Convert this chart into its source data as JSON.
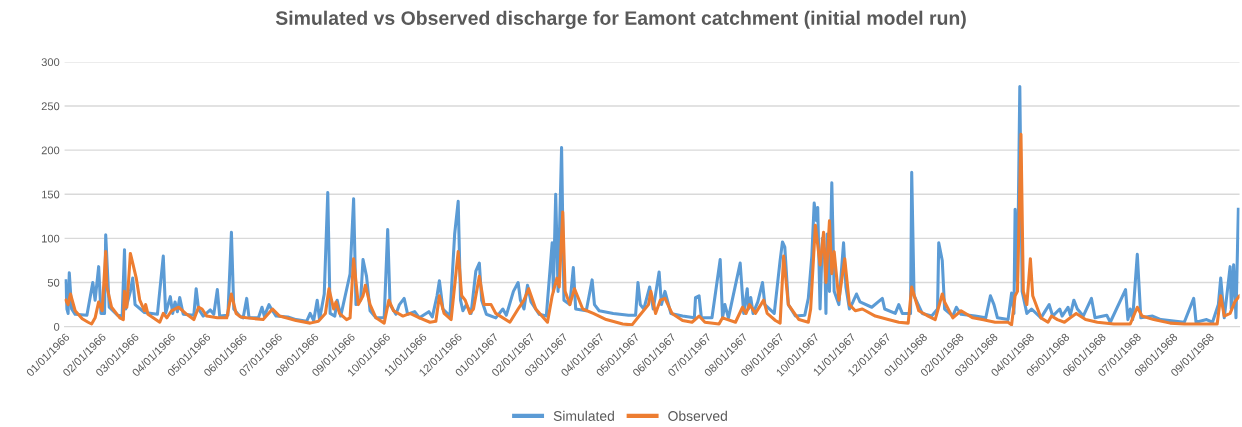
{
  "chart_data": {
    "type": "line",
    "title": "Simulated vs Observed discharge for Eamont catchment (initial model run)",
    "xlim": [
      "1966-01-01",
      "1968-09-27"
    ],
    "ylim": [
      0,
      300
    ],
    "yticks": [
      0,
      50,
      100,
      150,
      200,
      250,
      300
    ],
    "xticks": [
      {
        "value": "1966-01-01",
        "label": "01/01/1966"
      },
      {
        "value": "1966-02-01",
        "label": "02/01/1966"
      },
      {
        "value": "1966-03-01",
        "label": "03/01/1966"
      },
      {
        "value": "1966-04-01",
        "label": "04/01/1966"
      },
      {
        "value": "1966-05-01",
        "label": "05/01/1966"
      },
      {
        "value": "1966-06-01",
        "label": "06/01/1966"
      },
      {
        "value": "1966-07-01",
        "label": "07/01/1966"
      },
      {
        "value": "1966-08-01",
        "label": "08/01/1966"
      },
      {
        "value": "1966-09-01",
        "label": "09/01/1966"
      },
      {
        "value": "1966-10-01",
        "label": "10/01/1966"
      },
      {
        "value": "1966-11-01",
        "label": "11/01/1966"
      },
      {
        "value": "1966-12-01",
        "label": "12/01/1966"
      },
      {
        "value": "1967-01-01",
        "label": "01/01/1967"
      },
      {
        "value": "1967-02-01",
        "label": "02/01/1967"
      },
      {
        "value": "1967-03-01",
        "label": "03/01/1967"
      },
      {
        "value": "1967-04-01",
        "label": "04/01/1967"
      },
      {
        "value": "1967-05-01",
        "label": "05/01/1967"
      },
      {
        "value": "1967-06-01",
        "label": "06/01/1967"
      },
      {
        "value": "1967-07-01",
        "label": "07/01/1967"
      },
      {
        "value": "1967-08-01",
        "label": "08/01/1967"
      },
      {
        "value": "1967-09-01",
        "label": "09/01/1967"
      },
      {
        "value": "1967-10-01",
        "label": "10/01/1967"
      },
      {
        "value": "1967-11-01",
        "label": "11/01/1967"
      },
      {
        "value": "1967-12-01",
        "label": "12/01/1967"
      },
      {
        "value": "1968-01-01",
        "label": "01/01/1968"
      },
      {
        "value": "1968-02-01",
        "label": "02/01/1968"
      },
      {
        "value": "1968-03-01",
        "label": "03/01/1968"
      },
      {
        "value": "1968-04-01",
        "label": "04/01/1968"
      },
      {
        "value": "1968-05-01",
        "label": "05/01/1968"
      },
      {
        "value": "1968-06-01",
        "label": "06/01/1968"
      },
      {
        "value": "1968-07-01",
        "label": "07/01/1968"
      },
      {
        "value": "1968-08-01",
        "label": "08/01/1968"
      },
      {
        "value": "1968-09-01",
        "label": "09/01/1968"
      }
    ],
    "grid": "y",
    "legend": "bottom",
    "marker": "none",
    "line_style": "solid",
    "series": [
      {
        "name": "Simulated",
        "color": "#5b9bd5",
        "x": [
          "1966-01-02",
          "1966-01-03",
          "1966-01-04",
          "1966-01-05",
          "1966-01-07",
          "1966-01-10",
          "1966-01-20",
          "1966-01-25",
          "1966-01-27",
          "1966-01-30",
          "1966-02-01",
          "1966-02-04",
          "1966-02-05",
          "1966-02-08",
          "1966-02-15",
          "1966-02-19",
          "1966-02-21",
          "1966-02-22",
          "1966-02-26",
          "1966-02-28",
          "1966-03-02",
          "1966-03-10",
          "1966-03-21",
          "1966-03-26",
          "1966-03-28",
          "1966-04-01",
          "1966-04-03",
          "1966-04-05",
          "1966-04-07",
          "1966-04-09",
          "1966-04-12",
          "1966-04-21",
          "1966-04-23",
          "1966-04-25",
          "1966-04-29",
          "1966-05-05",
          "1966-05-08",
          "1966-05-11",
          "1966-05-13",
          "1966-05-20",
          "1966-05-23",
          "1966-05-25",
          "1966-05-30",
          "1966-06-02",
          "1966-06-05",
          "1966-06-07",
          "1966-06-15",
          "1966-06-18",
          "1966-06-20",
          "1966-06-24",
          "1966-06-26",
          "1966-06-30",
          "1966-07-10",
          "1966-07-17",
          "1966-07-26",
          "1966-07-29",
          "1966-08-01",
          "1966-08-04",
          "1966-08-06",
          "1966-08-10",
          "1966-08-13",
          "1966-08-15",
          "1966-08-19",
          "1966-08-21",
          "1966-08-24",
          "1966-09-01",
          "1966-09-04",
          "1966-09-06",
          "1966-09-10",
          "1966-09-12",
          "1966-09-15",
          "1966-09-18",
          "1966-09-23",
          "1966-09-30",
          "1966-10-03",
          "1966-10-05",
          "1966-10-10",
          "1966-10-13",
          "1966-10-17",
          "1966-10-20",
          "1966-10-26",
          "1966-10-30",
          "1966-11-07",
          "1966-11-10",
          "1966-11-14",
          "1966-11-16",
          "1966-11-19",
          "1966-11-25",
          "1966-11-29",
          "1966-12-02",
          "1966-12-04",
          "1966-12-06",
          "1966-12-09",
          "1966-12-13",
          "1966-12-17",
          "1966-12-20",
          "1966-12-22",
          "1966-12-26",
          "1967-01-03",
          "1967-01-09",
          "1967-01-12",
          "1967-01-18",
          "1967-01-22",
          "1967-01-24",
          "1967-01-27",
          "1967-01-30",
          "1967-02-02",
          "1967-02-09",
          "1967-02-15",
          "1967-02-20",
          "1967-02-21",
          "1967-02-23",
          "1967-02-25",
          "1967-02-28",
          "1967-03-02",
          "1967-03-07",
          "1967-03-10",
          "1967-03-12",
          "1967-03-21",
          "1967-03-26",
          "1967-03-28",
          "1967-04-01",
          "1967-04-13",
          "1967-04-26",
          "1967-05-02",
          "1967-05-04",
          "1967-05-06",
          "1967-05-09",
          "1967-05-14",
          "1967-05-17",
          "1967-05-22",
          "1967-05-24",
          "1967-05-27",
          "1967-06-01",
          "1967-06-11",
          "1967-06-21",
          "1967-06-22",
          "1967-06-25",
          "1967-06-27",
          "1967-07-06",
          "1967-07-13",
          "1967-07-15",
          "1967-07-17",
          "1967-07-20",
          "1967-07-30",
          "1967-08-02",
          "1967-08-05",
          "1967-08-06",
          "1967-08-08",
          "1967-08-10",
          "1967-08-14",
          "1967-08-18",
          "1967-08-20",
          "1967-08-28",
          "1967-09-02",
          "1967-09-04",
          "1967-09-06",
          "1967-09-09",
          "1967-09-15",
          "1967-09-23",
          "1967-09-26",
          "1967-09-29",
          "1967-10-01",
          "1967-10-03",
          "1967-10-04",
          "1967-10-06",
          "1967-10-08",
          "1967-10-10",
          "1967-10-11",
          "1967-10-12",
          "1967-10-14",
          "1967-10-16",
          "1967-10-18",
          "1967-10-22",
          "1967-10-26",
          "1967-10-28",
          "1967-10-31",
          "1967-11-03",
          "1967-11-06",
          "1967-11-09",
          "1967-11-19",
          "1967-11-28",
          "1967-11-30",
          "1967-12-09",
          "1967-12-12",
          "1967-12-15",
          "1967-12-22",
          "1967-12-23",
          "1967-12-25",
          "1968-01-01",
          "1968-01-09",
          "1968-01-14",
          "1968-01-15",
          "1968-01-18",
          "1968-01-20",
          "1968-01-27",
          "1968-01-30",
          "1968-02-03",
          "1968-02-15",
          "1968-02-24",
          "1968-02-28",
          "1968-03-02",
          "1968-03-05",
          "1968-03-14",
          "1968-03-17",
          "1968-03-19",
          "1968-03-20",
          "1968-03-22",
          "1968-03-24",
          "1968-03-26",
          "1968-03-30",
          "1968-04-03",
          "1968-04-11",
          "1968-04-18",
          "1968-04-21",
          "1968-04-27",
          "1968-04-29",
          "1968-05-04",
          "1968-05-06",
          "1968-05-09",
          "1968-05-12",
          "1968-05-17",
          "1968-05-24",
          "1968-05-27",
          "1968-06-06",
          "1968-06-09",
          "1968-06-22",
          "1968-06-24",
          "1968-06-26",
          "1968-06-28",
          "1968-07-02",
          "1968-07-05",
          "1968-07-15",
          "1968-07-22",
          "1968-08-11",
          "1968-08-19",
          "1968-08-21",
          "1968-08-30",
          "1968-09-04",
          "1968-09-09",
          "1968-09-11",
          "1968-09-14",
          "1968-09-19",
          "1968-09-20",
          "1968-09-22",
          "1968-09-24",
          "1968-09-26"
        ],
        "values": [
          52,
          20,
          15,
          61,
          20,
          14,
          13,
          50,
          30,
          68,
          15,
          15,
          104,
          22,
          13,
          12,
          87,
          20,
          40,
          55,
          25,
          16,
          14,
          80,
          15,
          34,
          15,
          28,
          17,
          33,
          14,
          13,
          43,
          20,
          12,
          19,
          14,
          42,
          12,
          13,
          107,
          20,
          12,
          10,
          32,
          10,
          10,
          22,
          12,
          25,
          20,
          12,
          11,
          8,
          6,
          15,
          7,
          30,
          8,
          37,
          152,
          15,
          12,
          30,
          12,
          60,
          145,
          25,
          30,
          76,
          57,
          18,
          10,
          10,
          110,
          25,
          14,
          25,
          32,
          14,
          17,
          10,
          17,
          11,
          35,
          52,
          20,
          12,
          105,
          142,
          30,
          18,
          25,
          15,
          63,
          72,
          30,
          14,
          10,
          20,
          13,
          40,
          50,
          30,
          20,
          47,
          28,
          14,
          12,
          95,
          40,
          150,
          40,
          203,
          30,
          25,
          67,
          20,
          18,
          53,
          25,
          18,
          15,
          13,
          13,
          50,
          25,
          20,
          45,
          20,
          62,
          25,
          40,
          15,
          12,
          10,
          33,
          35,
          10,
          10,
          76,
          10,
          25,
          10,
          72,
          15,
          43,
          20,
          33,
          15,
          28,
          50,
          25,
          15,
          75,
          96,
          90,
          25,
          12,
          13,
          32,
          80,
          140,
          120,
          135,
          20,
          100,
          80,
          15,
          105,
          40,
          163,
          40,
          25,
          95,
          45,
          20,
          28,
          37,
          28,
          22,
          32,
          20,
          15,
          25,
          15,
          15,
          175,
          35,
          15,
          12,
          20,
          95,
          75,
          20,
          12,
          22,
          14,
          12,
          10,
          35,
          25,
          10,
          8,
          38,
          15,
          133,
          50,
          272,
          40,
          15,
          20,
          10,
          25,
          12,
          20,
          12,
          22,
          13,
          30,
          20,
          12,
          32,
          10,
          13,
          5,
          42,
          8,
          20,
          8,
          82,
          10,
          12,
          8,
          5,
          32,
          5,
          8,
          5,
          25,
          55,
          10,
          68,
          20,
          70,
          10,
          133
        ]
      },
      {
        "name": "Observed",
        "color": "#ed7d31",
        "x": [
          "1966-01-02",
          "1966-01-04",
          "1966-01-06",
          "1966-01-10",
          "1966-01-16",
          "1966-01-21",
          "1966-01-24",
          "1966-01-27",
          "1966-01-30",
          "1966-02-02",
          "1966-02-05",
          "1966-02-06",
          "1966-02-10",
          "1966-02-17",
          "1966-02-20",
          "1966-02-21",
          "1966-02-23",
          "1966-02-26",
          "1966-02-28",
          "1966-03-03",
          "1966-03-06",
          "1966-03-10",
          "1966-03-11",
          "1966-03-13",
          "1966-03-23",
          "1966-03-26",
          "1966-03-29",
          "1966-04-02",
          "1966-04-08",
          "1966-04-15",
          "1966-04-21",
          "1966-04-25",
          "1966-04-28",
          "1966-05-02",
          "1966-05-11",
          "1966-05-19",
          "1966-05-23",
          "1966-05-27",
          "1966-05-31",
          "1966-06-05",
          "1966-06-19",
          "1966-06-27",
          "1966-07-03",
          "1966-07-17",
          "1966-07-29",
          "1966-08-05",
          "1966-08-11",
          "1966-08-14",
          "1966-08-18",
          "1966-08-20",
          "1966-08-23",
          "1966-08-29",
          "1966-09-01",
          "1966-09-04",
          "1966-09-08",
          "1966-09-12",
          "1966-09-14",
          "1966-09-18",
          "1966-09-23",
          "1966-09-30",
          "1966-10-04",
          "1966-10-08",
          "1966-10-16",
          "1966-10-22",
          "1966-10-30",
          "1966-11-08",
          "1966-11-13",
          "1966-11-16",
          "1966-11-20",
          "1966-11-26",
          "1966-12-02",
          "1966-12-05",
          "1966-12-08",
          "1966-12-12",
          "1966-12-15",
          "1966-12-20",
          "1966-12-24",
          "1966-12-30",
          "1967-01-03",
          "1967-01-15",
          "1967-01-22",
          "1967-01-27",
          "1967-01-31",
          "1967-02-06",
          "1967-02-16",
          "1967-02-20",
          "1967-02-24",
          "1967-02-26",
          "1967-03-01",
          "1967-03-03",
          "1967-03-07",
          "1967-03-11",
          "1967-03-18",
          "1967-03-27",
          "1967-04-07",
          "1967-04-21",
          "1967-04-29",
          "1967-05-05",
          "1967-05-13",
          "1967-05-15",
          "1967-05-19",
          "1967-05-23",
          "1967-05-27",
          "1967-06-02",
          "1967-06-11",
          "1967-06-19",
          "1967-06-25",
          "1967-06-30",
          "1967-07-12",
          "1967-07-15",
          "1967-07-26",
          "1967-08-01",
          "1967-08-04",
          "1967-08-07",
          "1967-08-12",
          "1967-08-19",
          "1967-08-22",
          "1967-08-29",
          "1967-09-02",
          "1967-09-05",
          "1967-09-09",
          "1967-09-18",
          "1967-09-26",
          "1967-09-28",
          "1967-10-02",
          "1967-10-06",
          "1967-10-09",
          "1967-10-11",
          "1967-10-14",
          "1967-10-16",
          "1967-10-18",
          "1967-10-22",
          "1967-10-27",
          "1967-10-31",
          "1967-11-05",
          "1967-11-11",
          "1967-11-22",
          "1967-12-03",
          "1967-12-12",
          "1967-12-20",
          "1967-12-23",
          "1967-12-29",
          "1968-01-06",
          "1968-01-12",
          "1968-01-18",
          "1968-01-20",
          "1968-01-27",
          "1968-02-03",
          "1968-02-13",
          "1968-02-21",
          "1968-03-03",
          "1968-03-14",
          "1968-03-17",
          "1968-03-20",
          "1968-03-22",
          "1968-03-25",
          "1968-03-27",
          "1968-03-30",
          "1968-04-02",
          "1968-04-04",
          "1968-04-11",
          "1968-04-17",
          "1968-04-20",
          "1968-04-25",
          "1968-05-01",
          "1968-05-06",
          "1968-05-11",
          "1968-05-19",
          "1968-05-29",
          "1968-06-12",
          "1968-06-26",
          "1968-07-02",
          "1968-07-06",
          "1968-07-16",
          "1968-07-30",
          "1968-08-11",
          "1968-08-25",
          "1968-09-08",
          "1968-09-11",
          "1968-09-14",
          "1968-09-19",
          "1968-09-23",
          "1968-09-27"
        ],
        "values": [
          30,
          25,
          37,
          18,
          9,
          5,
          3,
          10,
          28,
          18,
          85,
          45,
          22,
          10,
          8,
          40,
          22,
          83,
          72,
          55,
          30,
          18,
          25,
          14,
          5,
          15,
          10,
          18,
          22,
          14,
          8,
          22,
          20,
          12,
          10,
          10,
          37,
          15,
          11,
          10,
          8,
          20,
          12,
          7,
          4,
          6,
          15,
          43,
          20,
          28,
          15,
          8,
          10,
          77,
          25,
          35,
          47,
          25,
          10,
          4,
          30,
          18,
          12,
          15,
          10,
          5,
          6,
          35,
          15,
          8,
          85,
          35,
          30,
          15,
          20,
          57,
          25,
          25,
          15,
          5,
          20,
          30,
          43,
          20,
          5,
          35,
          55,
          45,
          130,
          40,
          25,
          43,
          20,
          15,
          8,
          3,
          2,
          12,
          25,
          40,
          15,
          30,
          32,
          15,
          7,
          5,
          12,
          5,
          3,
          10,
          5,
          22,
          15,
          25,
          15,
          30,
          15,
          7,
          4,
          80,
          25,
          8,
          5,
          20,
          115,
          70,
          107,
          50,
          120,
          60,
          85,
          30,
          77,
          25,
          18,
          20,
          12,
          8,
          5,
          4,
          45,
          18,
          12,
          8,
          37,
          28,
          10,
          18,
          10,
          8,
          5,
          5,
          2,
          35,
          40,
          218,
          40,
          25,
          77,
          35,
          10,
          5,
          12,
          8,
          5,
          10,
          15,
          8,
          5,
          3,
          3,
          22,
          12,
          8,
          4,
          3,
          3,
          3,
          35,
          12,
          15,
          28,
          35
        ]
      }
    ]
  }
}
